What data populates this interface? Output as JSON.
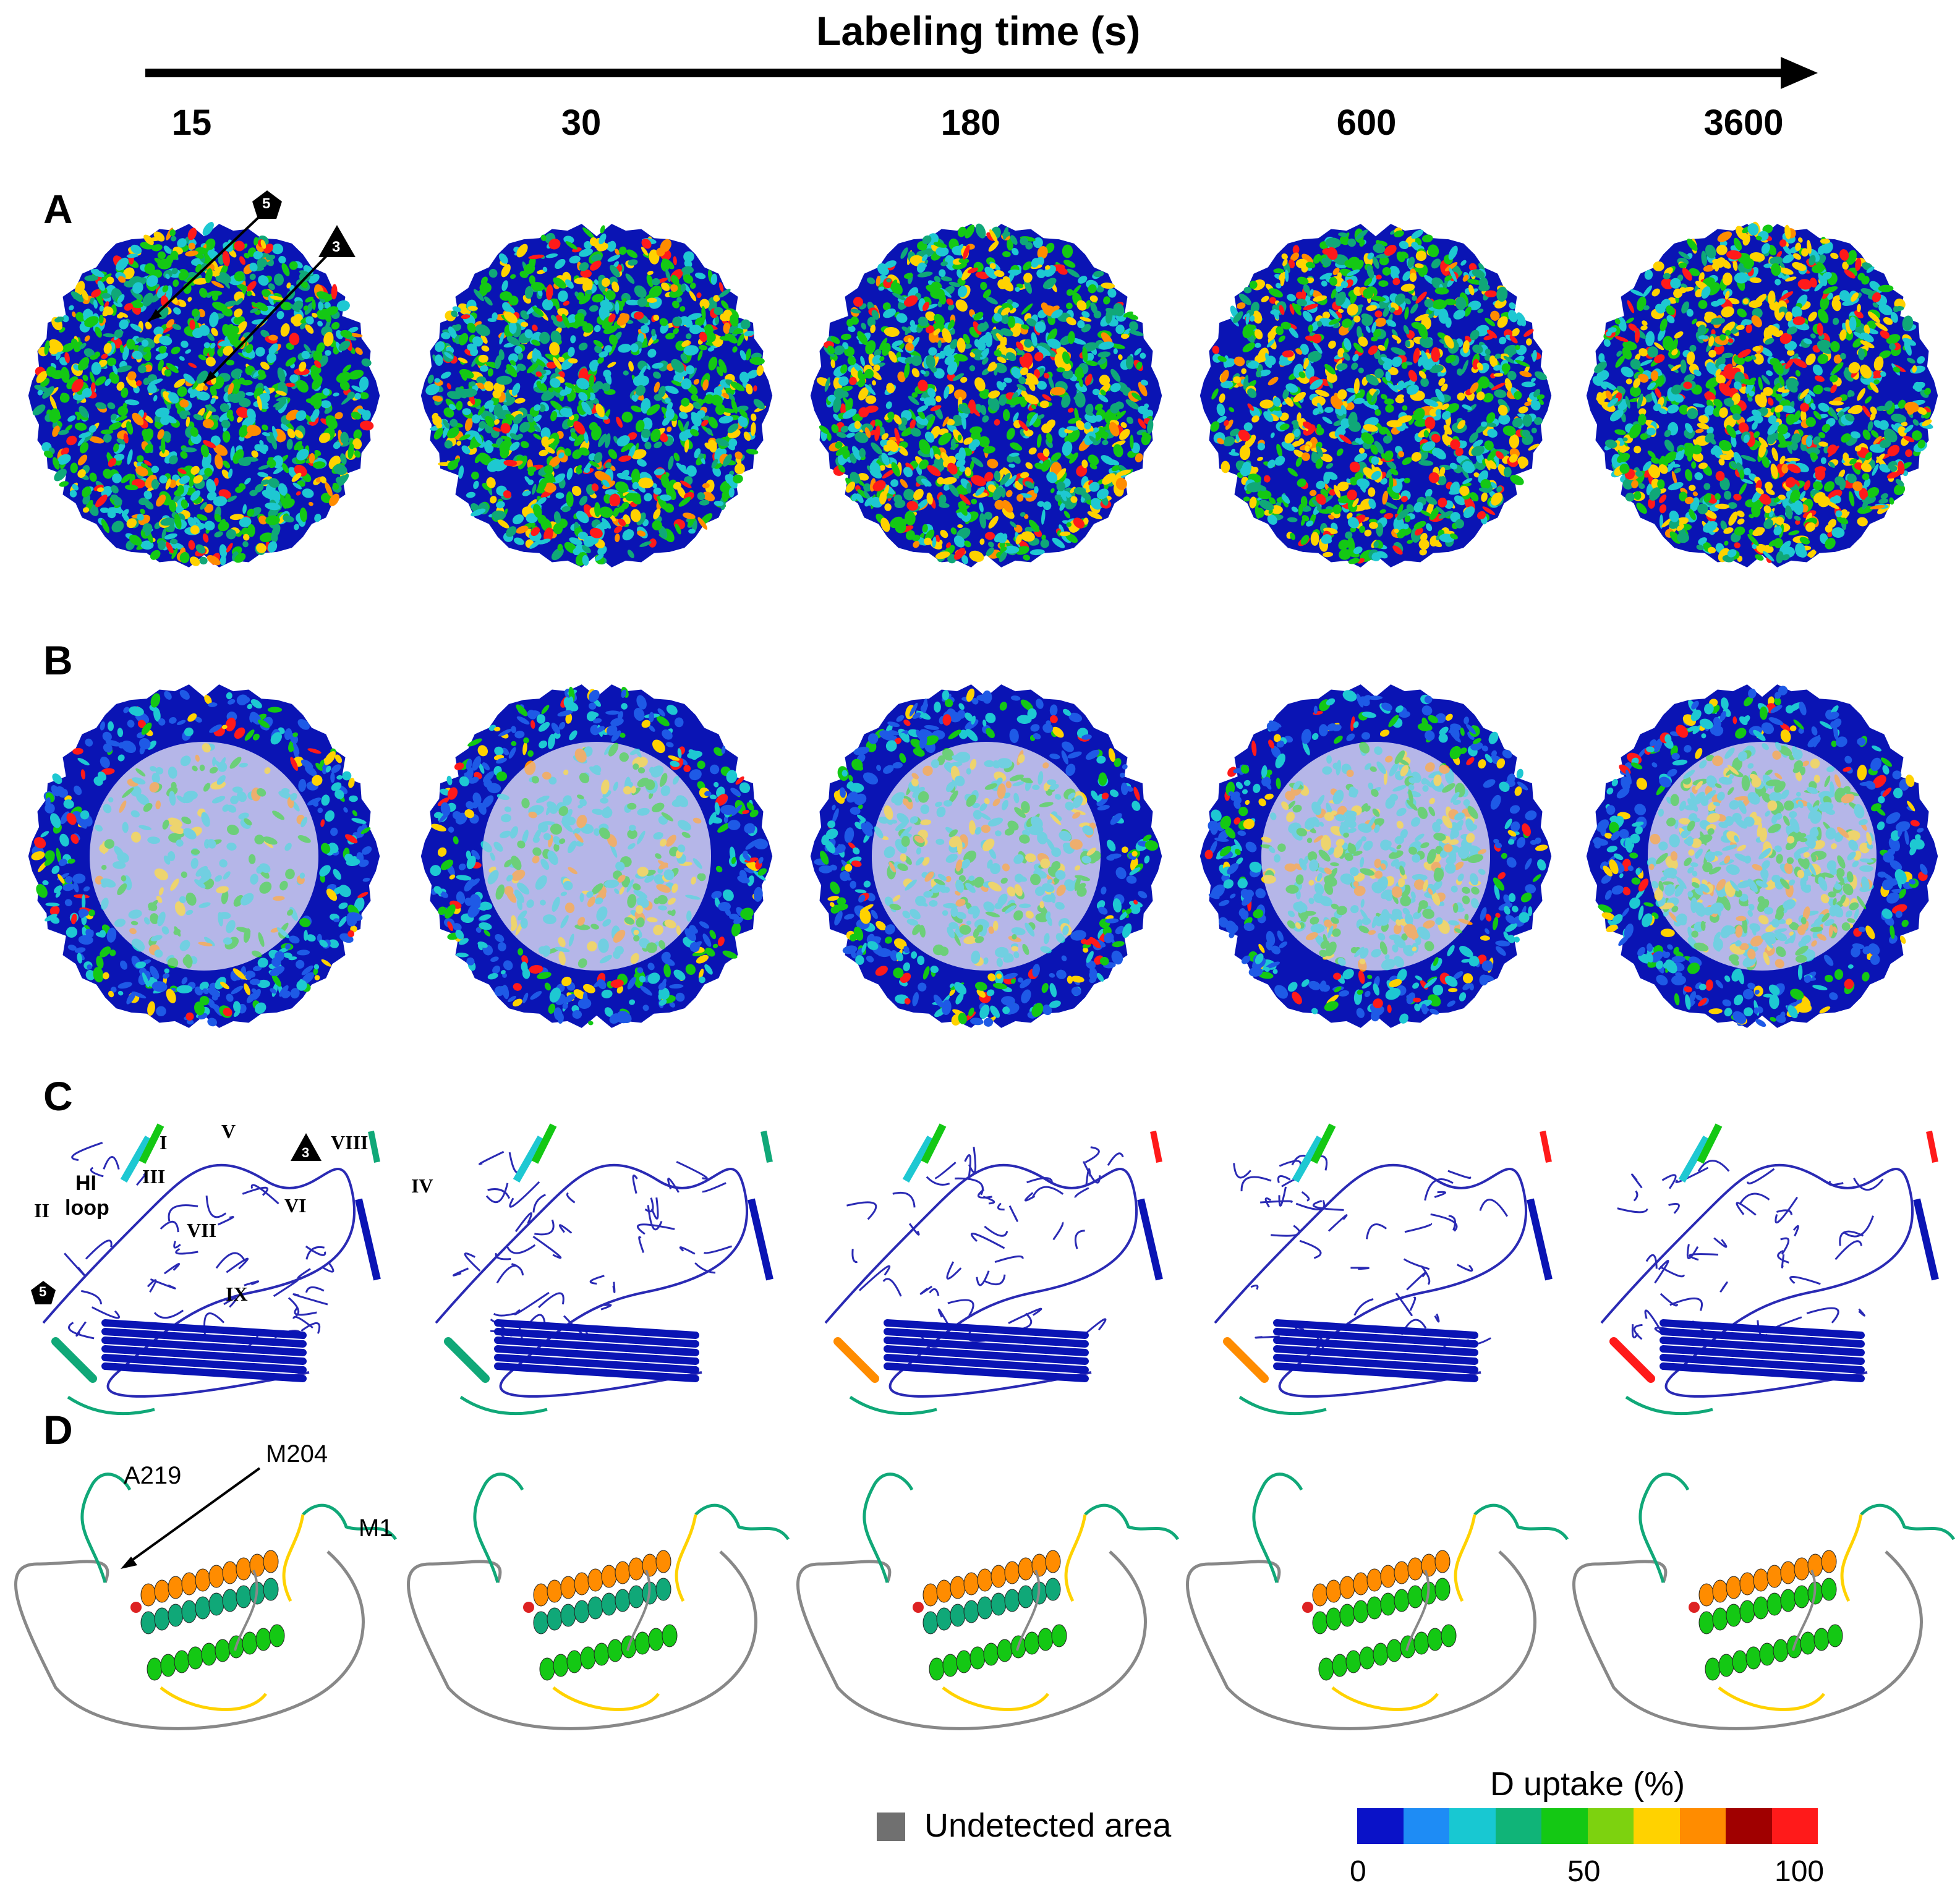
{
  "figure": {
    "axis_title": "Labeling time (s)",
    "time_points": [
      "15",
      "30",
      "180",
      "600",
      "3600"
    ],
    "panels": [
      "A",
      "B",
      "C",
      "D"
    ],
    "symbols": {
      "fivefold": "5",
      "threefold": "3"
    },
    "panel_c_labels": [
      "I",
      "II",
      "III",
      "IV",
      "V",
      "VI",
      "VII",
      "VIII",
      "IX",
      "HI",
      "loop"
    ],
    "panel_d_labels": [
      "A219",
      "M204",
      "M1"
    ]
  },
  "legend": {
    "undetected_label": "Undetected area",
    "undetected_color": "#707070",
    "title": "D uptake (%)",
    "ticks": [
      "0",
      "50",
      "100"
    ],
    "colors": [
      "#0a12c8",
      "#1e8cf5",
      "#18c8d2",
      "#10b478",
      "#14c814",
      "#7dd20f",
      "#ffd200",
      "#ff8c00",
      "#a00000",
      "#ff1a1a"
    ]
  },
  "palette": {
    "navy": "#0a14b4",
    "blue": "#1e5ae6",
    "cyan": "#1ec8d2",
    "teal": "#10a878",
    "green": "#14c814",
    "yellow": "#ffd200",
    "orange": "#ff8c00",
    "red": "#ff1a1a",
    "gray": "#888888"
  }
}
